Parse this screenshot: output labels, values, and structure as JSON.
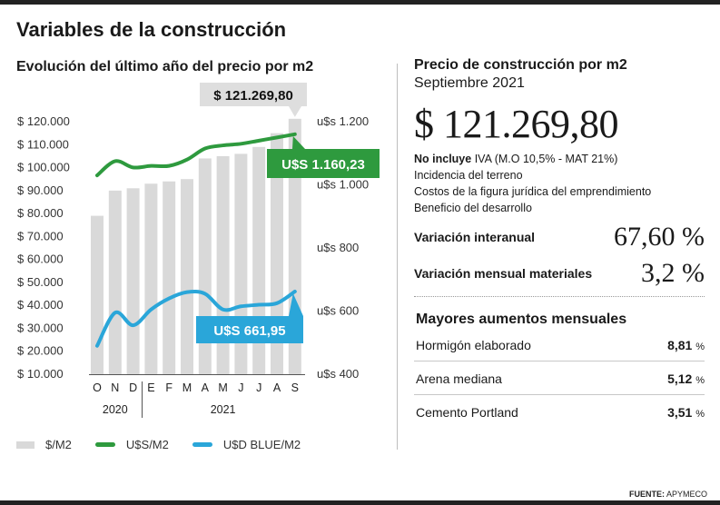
{
  "title": "Variables de la construcción",
  "left": {
    "chart_title": "Evolución del último año del precio por m2",
    "legend": [
      {
        "label": "$/M2",
        "color": "#d9d9d9",
        "kind": "bar"
      },
      {
        "label": "U$S/M2",
        "color": "#2e9a3e",
        "kind": "line"
      },
      {
        "label": "U$D BLUE/M2",
        "color": "#2aa6d9",
        "kind": "line"
      }
    ]
  },
  "chart_data": {
    "type": "bar",
    "categories": [
      "O",
      "N",
      "D",
      "E",
      "F",
      "M",
      "A",
      "M",
      "J",
      "J",
      "A",
      "S"
    ],
    "year_groups": [
      {
        "label": "2020",
        "from": 0,
        "to": 2
      },
      {
        "label": "2021",
        "from": 3,
        "to": 11
      }
    ],
    "y_left": {
      "ticks": [
        "$ 120.000",
        "$ 110.000",
        "$ 100.000",
        "$ 90.000",
        "$ 80.000",
        "$ 70.000",
        "$ 60.000",
        "$ 50.000",
        "$ 40.000",
        "$ 30.000",
        "$ 20.000",
        "$ 10.000"
      ],
      "min": 10000,
      "max": 120000
    },
    "y_right": {
      "ticks": [
        "u$s 1.200",
        "u$s 1.000",
        "u$s 800",
        "u$s 600",
        "u$s 400"
      ],
      "values": [
        1200,
        1000,
        800,
        600,
        400
      ],
      "min": 400,
      "max": 1200
    },
    "series": [
      {
        "name": "$/M2",
        "type": "bar",
        "axis": "left",
        "values": [
          79000,
          90000,
          91000,
          93000,
          94000,
          95000,
          104000,
          105000,
          106000,
          109000,
          115000,
          121269.8
        ]
      },
      {
        "name": "U$S/M2",
        "type": "line",
        "axis": "right",
        "color": "#2e9a3e",
        "values": [
          1030,
          1075,
          1055,
          1060,
          1060,
          1080,
          1115,
          1125,
          1130,
          1140,
          1150,
          1160.23
        ]
      },
      {
        "name": "U$D BLUE/M2",
        "type": "line",
        "axis": "right",
        "color": "#2aa6d9",
        "values": [
          490,
          595,
          555,
          605,
          640,
          660,
          655,
          605,
          615,
          620,
          625,
          661.95
        ]
      }
    ],
    "callouts": {
      "bar_last": "$ 121.269,80",
      "usd": "U$S 1.160,23",
      "blue": "U$S 661,95"
    },
    "grid": false
  },
  "right": {
    "title": "Precio de construcción por m2",
    "date": "Septiembre 2021",
    "price": "$ 121.269,80",
    "notes": {
      "not_included_bold": "No incluye",
      "not_included_rest": " IVA (M.O 10,5% - MAT 21%)",
      "line2": "Incidencia del terreno",
      "line3": "Costos de la figura jurídica del emprendimiento",
      "line4": "Beneficio del desarrollo"
    },
    "variations": [
      {
        "label": "Variación interanual",
        "value": "67,60 %"
      },
      {
        "label": "Variación mensual materiales",
        "value": "3,2 %"
      }
    ],
    "increases_title": "Mayores aumentos mensuales",
    "increases": [
      {
        "label": "Hormigón elaborado",
        "value": "8,81",
        "unit": "%"
      },
      {
        "label": "Arena mediana",
        "value": "5,12",
        "unit": "%"
      },
      {
        "label": "Cemento Portland",
        "value": "3,51",
        "unit": "%"
      }
    ]
  },
  "source": {
    "label": "FUENTE:",
    "value": "APYMECO"
  }
}
